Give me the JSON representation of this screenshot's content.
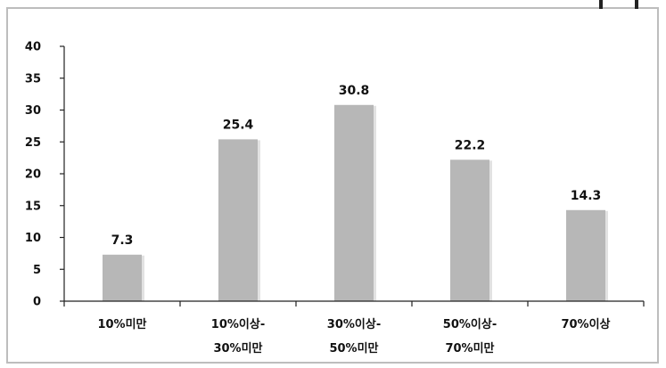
{
  "chart_data": {
    "type": "bar",
    "categories": [
      [
        "10%미만"
      ],
      [
        "10%이상-",
        "30%미만"
      ],
      [
        "30%이상-",
        "50%미만"
      ],
      [
        "50%이상-",
        "70%미만"
      ],
      [
        "70%이상"
      ]
    ],
    "values": [
      7.3,
      25.4,
      30.8,
      22.2,
      14.3
    ],
    "data_labels": [
      "7.3",
      "25.4",
      "30.8",
      "22.2",
      "14.3"
    ],
    "y_ticks": [
      0,
      5,
      10,
      15,
      20,
      25,
      30,
      35,
      40
    ],
    "ylim": [
      0,
      40
    ],
    "title": "",
    "xlabel": "",
    "ylabel": "",
    "grid": false,
    "legend": "none",
    "colors": {
      "bar": "#b7b7b7",
      "bar_shadow": "#e2e2e2",
      "axis": "#222222"
    }
  }
}
